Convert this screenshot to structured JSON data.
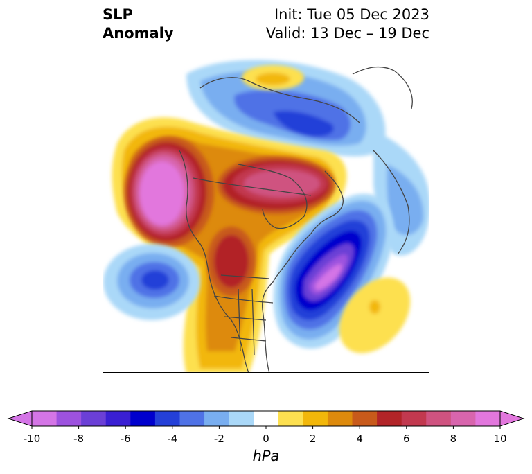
{
  "title": {
    "left_line1": "SLP",
    "left_line2": "Anomaly",
    "right_line1": "Init: Tue 05 Dec 2023",
    "right_line2": "Valid: 13 Dec – 19 Dec"
  },
  "map": {
    "variable": "sea level pressure anomaly",
    "region": "North America / North Atlantic",
    "features": [
      {
        "name": "positive-anomaly-ne-pacific",
        "sign": "positive",
        "peak_hPa": 10
      },
      {
        "name": "positive-anomaly-central-canada",
        "sign": "positive",
        "peak_hPa": 8
      },
      {
        "name": "positive-anomaly-western-us",
        "sign": "positive",
        "peak_hPa": 6
      },
      {
        "name": "negative-anomaly-eastern-north-america",
        "sign": "negative",
        "peak_hPa": -10
      },
      {
        "name": "negative-anomaly-arctic-greenland",
        "sign": "negative",
        "peak_hPa": -5
      },
      {
        "name": "negative-anomaly-subtropical-pacific",
        "sign": "negative",
        "peak_hPa": -5
      },
      {
        "name": "positive-anomaly-central-atlantic",
        "sign": "positive",
        "peak_hPa": 2
      }
    ]
  },
  "colorbar": {
    "unit": "hPa",
    "ticks": [
      "-10",
      "-8",
      "-6",
      "-4",
      "-2",
      "0",
      "2",
      "4",
      "6",
      "8",
      "10"
    ],
    "min": -10,
    "max": 10,
    "step": 1,
    "colors": [
      "#d475e6",
      "#9d52df",
      "#6b3fd6",
      "#3a1fd3",
      "#0000cd",
      "#2440d8",
      "#4f72e6",
      "#79aef0",
      "#aad8f8",
      "#ffffff",
      "#fde050",
      "#f2b70a",
      "#dd8a0c",
      "#c85a1b",
      "#b22428",
      "#c2394f",
      "#cf5380",
      "#d865ad",
      "#e277dd"
    ],
    "extend": "both"
  }
}
